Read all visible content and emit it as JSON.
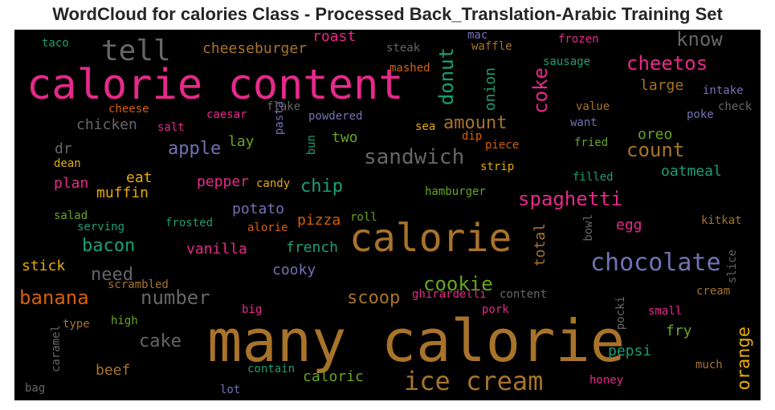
{
  "title": "WordCloud for calories Class - Processed Back_Translation-Arabic Training Set",
  "colors": {
    "background": "#000000",
    "title": "#262626"
  },
  "words": [
    {
      "text": "many calorie",
      "color": "#a8732a"
    },
    {
      "text": "calorie content",
      "color": "#e7298a"
    },
    {
      "text": "calorie",
      "color": "#a8732a"
    },
    {
      "text": "ice cream",
      "color": "#a8732a"
    },
    {
      "text": "chocolate",
      "color": "#7570b3"
    },
    {
      "text": "tell",
      "color": "#666666"
    },
    {
      "text": "sandwich",
      "color": "#666666"
    },
    {
      "text": "spaghetti",
      "color": "#e7298a"
    },
    {
      "text": "count",
      "color": "#a8732a"
    },
    {
      "text": "cheetos",
      "color": "#e7298a"
    },
    {
      "text": "know",
      "color": "#666666"
    },
    {
      "text": "number",
      "color": "#666666"
    },
    {
      "text": "banana",
      "color": "#d95f02"
    },
    {
      "text": "cookie",
      "color": "#66a61e"
    },
    {
      "text": "donut",
      "color": "#1b9e77"
    },
    {
      "text": "coke",
      "color": "#e7298a"
    },
    {
      "text": "apple",
      "color": "#7570b3"
    },
    {
      "text": "amount",
      "color": "#a8732a"
    },
    {
      "text": "chip",
      "color": "#1b9e77"
    },
    {
      "text": "scoop",
      "color": "#a8732a"
    },
    {
      "text": "cake",
      "color": "#666666"
    },
    {
      "text": "bacon",
      "color": "#1b9e77"
    },
    {
      "text": "orange",
      "color": "#e6ab02"
    },
    {
      "text": "need",
      "color": "#666666"
    },
    {
      "text": "cheeseburger",
      "color": "#a8732a"
    },
    {
      "text": "large",
      "color": "#a8732a"
    },
    {
      "text": "total",
      "color": "#a8732a"
    },
    {
      "text": "onion",
      "color": "#1b9e77"
    },
    {
      "text": "roast",
      "color": "#e7298a"
    },
    {
      "text": "pepsi",
      "color": "#1b9e77"
    },
    {
      "text": "french",
      "color": "#1b9e77"
    },
    {
      "text": "oatmeal",
      "color": "#1b9e77"
    },
    {
      "text": "chicken",
      "color": "#666666"
    },
    {
      "text": "muffin",
      "color": "#e6ab02"
    },
    {
      "text": "pizza",
      "color": "#d95f02"
    },
    {
      "text": "oreo",
      "color": "#66a61e"
    },
    {
      "text": "beef",
      "color": "#a8732a"
    },
    {
      "text": "potato",
      "color": "#7570b3"
    },
    {
      "text": "vanilla",
      "color": "#e7298a"
    },
    {
      "text": "cooky",
      "color": "#7570b3"
    },
    {
      "text": "pepper",
      "color": "#e7298a"
    },
    {
      "text": "two",
      "color": "#66a61e"
    },
    {
      "text": "fry",
      "color": "#66a61e"
    },
    {
      "text": "egg",
      "color": "#e7298a"
    },
    {
      "text": "caloric",
      "color": "#66a61e"
    },
    {
      "text": "plan",
      "color": "#e7298a"
    },
    {
      "text": "eat",
      "color": "#e6ab02"
    },
    {
      "text": "stick",
      "color": "#e6ab02"
    },
    {
      "text": "lay",
      "color": "#66a61e"
    },
    {
      "text": "dr",
      "color": "#666666"
    },
    {
      "text": "pasta",
      "color": "#7570b3"
    },
    {
      "text": "steak",
      "color": "#666666"
    },
    {
      "text": "mashed",
      "color": "#d95f02"
    },
    {
      "text": "waffle",
      "color": "#a8732a"
    },
    {
      "text": "sausage",
      "color": "#1b9e77"
    },
    {
      "text": "frozen",
      "color": "#e7298a"
    },
    {
      "text": "mac",
      "color": "#7570b3"
    },
    {
      "text": "taco",
      "color": "#1b9e77"
    },
    {
      "text": "cheese",
      "color": "#d95f02"
    },
    {
      "text": "flake",
      "color": "#666666"
    },
    {
      "text": "caesar",
      "color": "#e7298a"
    },
    {
      "text": "salt",
      "color": "#e7298a"
    },
    {
      "text": "powdered",
      "color": "#7570b3"
    },
    {
      "text": "bun",
      "color": "#1b9e77"
    },
    {
      "text": "sea",
      "color": "#e6ab02"
    },
    {
      "text": "dip",
      "color": "#d95f02"
    },
    {
      "text": "piece",
      "color": "#d95f02"
    },
    {
      "text": "strip",
      "color": "#e6ab02"
    },
    {
      "text": "intake",
      "color": "#7570b3"
    },
    {
      "text": "value",
      "color": "#a8732a"
    },
    {
      "text": "check",
      "color": "#666666"
    },
    {
      "text": "poke",
      "color": "#7570b3"
    },
    {
      "text": "want",
      "color": "#7570b3"
    },
    {
      "text": "fried",
      "color": "#66a61e"
    },
    {
      "text": "filled",
      "color": "#1b9e77"
    },
    {
      "text": "candy",
      "color": "#e6ab02"
    },
    {
      "text": "hamburger",
      "color": "#66a61e"
    },
    {
      "text": "dean",
      "color": "#e6ab02"
    },
    {
      "text": "salad",
      "color": "#66a61e"
    },
    {
      "text": "serving",
      "color": "#1b9e77"
    },
    {
      "text": "frosted",
      "color": "#1b9e77"
    },
    {
      "text": "alorie",
      "color": "#d95f02"
    },
    {
      "text": "roll",
      "color": "#66a61e"
    },
    {
      "text": "kitkat",
      "color": "#a8732a"
    },
    {
      "text": "bowl",
      "color": "#666666"
    },
    {
      "text": "slice",
      "color": "#666666"
    },
    {
      "text": "scrambled",
      "color": "#a8732a"
    },
    {
      "text": "ghirardelli",
      "color": "#e7298a"
    },
    {
      "text": "content",
      "color": "#666666"
    },
    {
      "text": "pork",
      "color": "#e7298a"
    },
    {
      "text": "pocki",
      "color": "#666666"
    },
    {
      "text": "small",
      "color": "#e7298a"
    },
    {
      "text": "cream",
      "color": "#a8732a"
    },
    {
      "text": "big",
      "color": "#e7298a"
    },
    {
      "text": "high",
      "color": "#66a61e"
    },
    {
      "text": "type",
      "color": "#a8732a"
    },
    {
      "text": "caramel",
      "color": "#666666"
    },
    {
      "text": "contain",
      "color": "#1b9e77"
    },
    {
      "text": "much",
      "color": "#a8732a"
    },
    {
      "text": "honey",
      "color": "#e7298a"
    },
    {
      "text": "bag",
      "color": "#666666"
    },
    {
      "text": "lot",
      "color": "#7570b3"
    }
  ]
}
